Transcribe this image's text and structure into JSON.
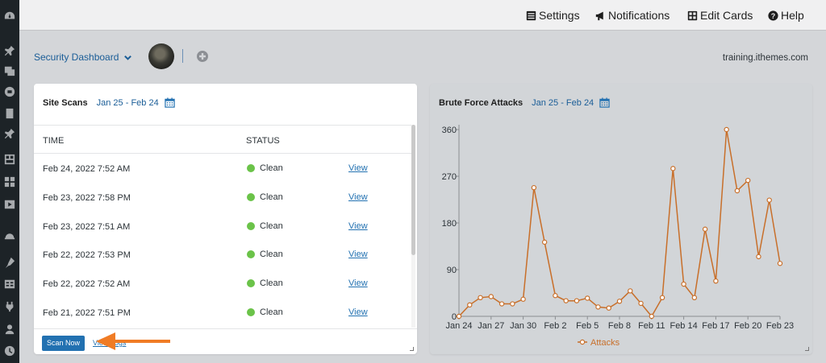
{
  "topbar": {
    "settings_label": "Settings",
    "notifications_label": "Notifications",
    "edit_cards_label": "Edit Cards",
    "help_label": "Help"
  },
  "dashboard": {
    "name": "Security Dashboard",
    "site_url": "training.ithemes.com"
  },
  "site_scans": {
    "title": "Site Scans",
    "date_range": "Jan 25 - Feb 24",
    "columns": {
      "time": "TIME",
      "status": "STATUS"
    },
    "rows": [
      {
        "time": "Feb 24, 2022 7:52 AM",
        "status": "Clean",
        "action": "View"
      },
      {
        "time": "Feb 23, 2022 7:58 PM",
        "status": "Clean",
        "action": "View"
      },
      {
        "time": "Feb 23, 2022 7:51 AM",
        "status": "Clean",
        "action": "View"
      },
      {
        "time": "Feb 22, 2022 7:53 PM",
        "status": "Clean",
        "action": "View"
      },
      {
        "time": "Feb 22, 2022 7:52 AM",
        "status": "Clean",
        "action": "View"
      },
      {
        "time": "Feb 21, 2022 7:51 PM",
        "status": "Clean",
        "action": "View"
      }
    ],
    "scan_now_label": "Scan Now",
    "view_logs_label": "View Logs"
  },
  "brute_force": {
    "title": "Brute Force Attacks",
    "date_range": "Jan 25 - Feb 24"
  },
  "colors": {
    "accent": "#2271b1",
    "clean": "#6bc349",
    "series": "#c86f2a",
    "arrow": "#f07c25"
  },
  "chart_data": {
    "type": "line",
    "x_ticks": [
      "Jan 24",
      "Jan 27",
      "Jan 30",
      "Feb 2",
      "Feb 5",
      "Feb 8",
      "Feb 11",
      "Feb 14",
      "Feb 17",
      "Feb 20",
      "Feb 23"
    ],
    "y_ticks": [
      0,
      90,
      180,
      270,
      360
    ],
    "ylim": [
      0,
      360
    ],
    "grid": false,
    "legend": "bottom",
    "series": [
      {
        "name": "Attacks",
        "x": [
          "Jan 24",
          "Jan 25",
          "Jan 26",
          "Jan 27",
          "Jan 28",
          "Jan 29",
          "Jan 30",
          "Jan 31",
          "Feb 1",
          "Feb 2",
          "Feb 3",
          "Feb 4",
          "Feb 5",
          "Feb 6",
          "Feb 7",
          "Feb 8",
          "Feb 9",
          "Feb 10",
          "Feb 11",
          "Feb 12",
          "Feb 13",
          "Feb 14",
          "Feb 15",
          "Feb 16",
          "Feb 17",
          "Feb 18",
          "Feb 19",
          "Feb 20",
          "Feb 21",
          "Feb 22",
          "Feb 23"
        ],
        "values": [
          0,
          22,
          36,
          38,
          24,
          24,
          33,
          248,
          143,
          40,
          30,
          30,
          35,
          18,
          16,
          29,
          49,
          25,
          0,
          36,
          285,
          62,
          36,
          168,
          68,
          360,
          242,
          262,
          115,
          224,
          102
        ]
      }
    ]
  }
}
